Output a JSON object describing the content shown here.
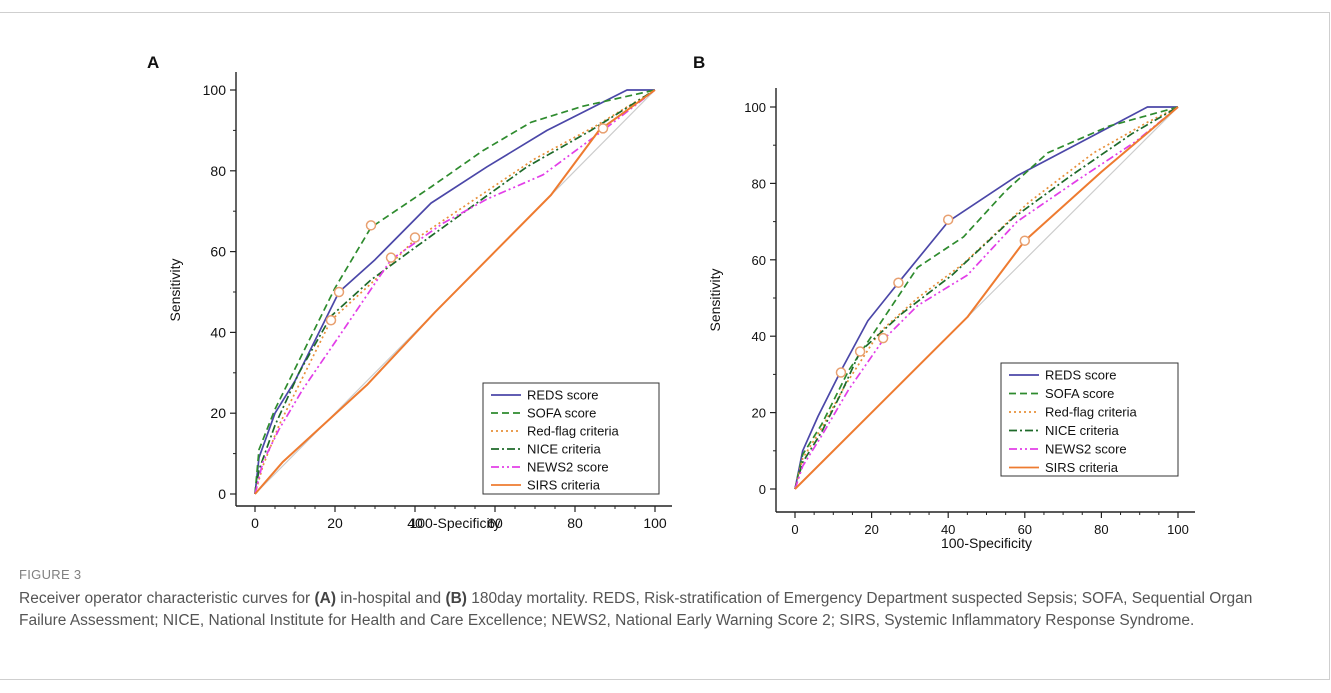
{
  "figure": {
    "label": "FIGURE 3",
    "caption": {
      "pre": "Receiver operator characteristic curves for ",
      "a_label": "(A)",
      "mid": " in-hospital and ",
      "b_label": "(B)",
      "post": " 180day mortality. REDS, Risk-stratification of Emergency Department suspected Sepsis; SOFA, Sequential Organ Failure Assessment; NICE, National Institute for Health and Care Excellence; NEWS2, National Early Warning Score 2; SIRS, Systemic Inflammatory Response Syndrome."
    }
  },
  "colors": {
    "REDS": "#4b47a8",
    "SOFA": "#2e8b2e",
    "RED_FLAG": "#e8903a",
    "NICE": "#1e6a2a",
    "NEWS2": "#e23ee8",
    "SIRS": "#ee7b30",
    "reference": "#cccccc",
    "marker": "#e8a070"
  },
  "chart_data": [
    {
      "type": "line",
      "panel": "A",
      "xlabel": "100-Specificity",
      "ylabel": "Sensitivity",
      "xlim": [
        0,
        100
      ],
      "ylim": [
        0,
        100
      ],
      "xticks": [
        0,
        20,
        40,
        60,
        80,
        100
      ],
      "yticks": [
        0,
        20,
        40,
        60,
        80,
        100
      ],
      "legend_position": "bottom-right",
      "reference_line": [
        [
          0,
          0
        ],
        [
          100,
          100
        ]
      ],
      "series": [
        {
          "name": "REDS score",
          "key": "REDS",
          "dash": "solid",
          "points": [
            [
              0,
              0
            ],
            [
              1,
              9
            ],
            [
              5,
              20
            ],
            [
              10,
              28
            ],
            [
              21,
              50
            ],
            [
              30,
              58
            ],
            [
              44,
              72
            ],
            [
              58,
              81
            ],
            [
              73,
              90
            ],
            [
              93,
              100
            ],
            [
              100,
              100
            ]
          ],
          "marker": [
            21,
            50
          ]
        },
        {
          "name": "SOFA score",
          "key": "SOFA",
          "dash": "dash",
          "points": [
            [
              0,
              0
            ],
            [
              1,
              11
            ],
            [
              5,
              21
            ],
            [
              11,
              33
            ],
            [
              20,
              51
            ],
            [
              29,
              66
            ],
            [
              44,
              76
            ],
            [
              57,
              85
            ],
            [
              69,
              92
            ],
            [
              82,
              96
            ],
            [
              100,
              100
            ]
          ],
          "marker": [
            29,
            66.5
          ]
        },
        {
          "name": "Red-flag criteria",
          "key": "RED_FLAG",
          "dash": "dot",
          "points": [
            [
              0,
              0
            ],
            [
              2,
              7
            ],
            [
              6,
              17
            ],
            [
              12,
              29
            ],
            [
              19,
              43
            ],
            [
              30,
              53
            ],
            [
              40,
              63
            ],
            [
              55,
              73
            ],
            [
              70,
              83
            ],
            [
              85,
              91
            ],
            [
              100,
              100
            ]
          ],
          "marker": [
            40,
            63.5
          ]
        },
        {
          "name": "NICE criteria",
          "key": "NICE",
          "dash": "dashdot",
          "points": [
            [
              0,
              0
            ],
            [
              1,
              6
            ],
            [
              5,
              17
            ],
            [
              11,
              30
            ],
            [
              19,
              44
            ],
            [
              29,
              53
            ],
            [
              40,
              61
            ],
            [
              54,
              71
            ],
            [
              68,
              81
            ],
            [
              84,
              90
            ],
            [
              100,
              100
            ]
          ],
          "marker": [
            19,
            43
          ]
        },
        {
          "name": "NEWS2 score",
          "key": "NEWS2",
          "dash": "dashdotdot",
          "points": [
            [
              0,
              0
            ],
            [
              2,
              8
            ],
            [
              6,
              16
            ],
            [
              12,
              26
            ],
            [
              21,
              39
            ],
            [
              34,
              58
            ],
            [
              47,
              67
            ],
            [
              58,
              73
            ],
            [
              72,
              79
            ],
            [
              87,
              90
            ],
            [
              100,
              100
            ]
          ],
          "marker": [
            34,
            58.5
          ]
        },
        {
          "name": "SIRS criteria",
          "key": "SIRS",
          "dash": "solid",
          "points": [
            [
              0,
              0
            ],
            [
              7,
              8
            ],
            [
              28,
              27
            ],
            [
              45,
              45
            ],
            [
              60,
              60
            ],
            [
              74,
              74
            ],
            [
              86,
              90
            ],
            [
              100,
              100
            ]
          ],
          "marker": [
            87,
            90.5
          ]
        }
      ]
    },
    {
      "type": "line",
      "panel": "B",
      "xlabel": "100-Specificity",
      "ylabel": "Sensitivity",
      "xlim": [
        0,
        100
      ],
      "ylim": [
        0,
        100
      ],
      "xticks": [
        0,
        20,
        40,
        60,
        80,
        100
      ],
      "yticks": [
        0,
        20,
        40,
        60,
        80,
        100
      ],
      "legend_position": "bottom-right",
      "reference_line": [
        [
          0,
          0
        ],
        [
          100,
          100
        ]
      ],
      "series": [
        {
          "name": "REDS score",
          "key": "REDS",
          "dash": "solid",
          "points": [
            [
              0,
              0
            ],
            [
              2,
              10
            ],
            [
              6,
              19
            ],
            [
              12,
              31
            ],
            [
              19,
              44
            ],
            [
              27,
              54
            ],
            [
              40,
              70
            ],
            [
              58,
              82
            ],
            [
              75,
              91
            ],
            [
              92,
              100
            ],
            [
              100,
              100
            ]
          ],
          "marker": [
            40,
            70.5
          ]
        },
        {
          "name": "SOFA score",
          "key": "SOFA",
          "dash": "dash",
          "points": [
            [
              0,
              0
            ],
            [
              2,
              9
            ],
            [
              7,
              17
            ],
            [
              14,
              31
            ],
            [
              24,
              46
            ],
            [
              32,
              58
            ],
            [
              44,
              66
            ],
            [
              55,
              78
            ],
            [
              66,
              88
            ],
            [
              82,
              95
            ],
            [
              100,
              100
            ]
          ],
          "marker": [
            12,
            30.5
          ]
        },
        {
          "name": "Red-flag criteria",
          "key": "RED_FLAG",
          "dash": "dot",
          "points": [
            [
              0,
              0
            ],
            [
              2,
              8
            ],
            [
              7,
              16
            ],
            [
              13,
              27
            ],
            [
              22,
              41
            ],
            [
              32,
              50
            ],
            [
              44,
              59
            ],
            [
              61,
              75
            ],
            [
              78,
              88
            ],
            [
              92,
              96
            ],
            [
              100,
              100
            ]
          ],
          "marker": [
            27,
            54
          ]
        },
        {
          "name": "NICE  criteria",
          "key": "NICE",
          "dash": "dashdot",
          "points": [
            [
              0,
              0
            ],
            [
              2,
              7
            ],
            [
              7,
              15
            ],
            [
              12,
              25
            ],
            [
              17,
              36
            ],
            [
              28,
              46
            ],
            [
              41,
              56
            ],
            [
              57,
              71
            ],
            [
              72,
              82
            ],
            [
              88,
              93
            ],
            [
              100,
              100
            ]
          ],
          "marker": [
            17,
            36
          ]
        },
        {
          "name": "NEWS2 score",
          "key": "NEWS2",
          "dash": "dashdotdot",
          "points": [
            [
              0,
              0
            ],
            [
              2,
              6
            ],
            [
              7,
              14
            ],
            [
              14,
              26
            ],
            [
              23,
              39
            ],
            [
              32,
              48
            ],
            [
              45,
              56
            ],
            [
              58,
              70
            ],
            [
              74,
              81
            ],
            [
              89,
              91
            ],
            [
              100,
              100
            ]
          ],
          "marker": [
            23,
            39.5
          ]
        },
        {
          "name": "SIRS criteria",
          "key": "SIRS",
          "dash": "solid",
          "points": [
            [
              0,
              0
            ],
            [
              29,
              29
            ],
            [
              45,
              45
            ],
            [
              60,
              65
            ],
            [
              80,
              83
            ],
            [
              100,
              100
            ]
          ],
          "marker": [
            60,
            65
          ]
        }
      ]
    }
  ]
}
